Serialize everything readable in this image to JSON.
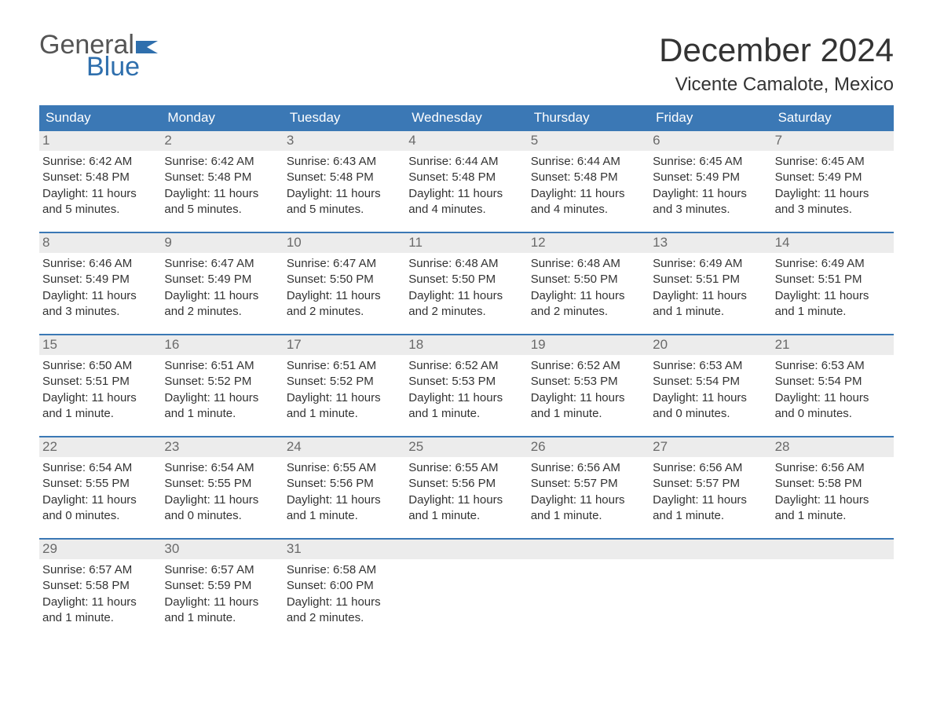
{
  "brand": {
    "general": "General",
    "blue": "Blue"
  },
  "title": "December 2024",
  "location": "Vicente Camalote, Mexico",
  "colors": {
    "header_bg": "#3b78b5",
    "header_text": "#ffffff",
    "daynum_bg": "#ececec",
    "daynum_text": "#6a6a6a",
    "body_text": "#333333",
    "brand_gray": "#555555",
    "brand_blue": "#2f6fad",
    "page_bg": "#ffffff"
  },
  "day_labels": [
    "Sunday",
    "Monday",
    "Tuesday",
    "Wednesday",
    "Thursday",
    "Friday",
    "Saturday"
  ],
  "weeks": [
    [
      {
        "n": "1",
        "sr": "Sunrise: 6:42 AM",
        "ss": "Sunset: 5:48 PM",
        "d1": "Daylight: 11 hours",
        "d2": "and 5 minutes."
      },
      {
        "n": "2",
        "sr": "Sunrise: 6:42 AM",
        "ss": "Sunset: 5:48 PM",
        "d1": "Daylight: 11 hours",
        "d2": "and 5 minutes."
      },
      {
        "n": "3",
        "sr": "Sunrise: 6:43 AM",
        "ss": "Sunset: 5:48 PM",
        "d1": "Daylight: 11 hours",
        "d2": "and 5 minutes."
      },
      {
        "n": "4",
        "sr": "Sunrise: 6:44 AM",
        "ss": "Sunset: 5:48 PM",
        "d1": "Daylight: 11 hours",
        "d2": "and 4 minutes."
      },
      {
        "n": "5",
        "sr": "Sunrise: 6:44 AM",
        "ss": "Sunset: 5:48 PM",
        "d1": "Daylight: 11 hours",
        "d2": "and 4 minutes."
      },
      {
        "n": "6",
        "sr": "Sunrise: 6:45 AM",
        "ss": "Sunset: 5:49 PM",
        "d1": "Daylight: 11 hours",
        "d2": "and 3 minutes."
      },
      {
        "n": "7",
        "sr": "Sunrise: 6:45 AM",
        "ss": "Sunset: 5:49 PM",
        "d1": "Daylight: 11 hours",
        "d2": "and 3 minutes."
      }
    ],
    [
      {
        "n": "8",
        "sr": "Sunrise: 6:46 AM",
        "ss": "Sunset: 5:49 PM",
        "d1": "Daylight: 11 hours",
        "d2": "and 3 minutes."
      },
      {
        "n": "9",
        "sr": "Sunrise: 6:47 AM",
        "ss": "Sunset: 5:49 PM",
        "d1": "Daylight: 11 hours",
        "d2": "and 2 minutes."
      },
      {
        "n": "10",
        "sr": "Sunrise: 6:47 AM",
        "ss": "Sunset: 5:50 PM",
        "d1": "Daylight: 11 hours",
        "d2": "and 2 minutes."
      },
      {
        "n": "11",
        "sr": "Sunrise: 6:48 AM",
        "ss": "Sunset: 5:50 PM",
        "d1": "Daylight: 11 hours",
        "d2": "and 2 minutes."
      },
      {
        "n": "12",
        "sr": "Sunrise: 6:48 AM",
        "ss": "Sunset: 5:50 PM",
        "d1": "Daylight: 11 hours",
        "d2": "and 2 minutes."
      },
      {
        "n": "13",
        "sr": "Sunrise: 6:49 AM",
        "ss": "Sunset: 5:51 PM",
        "d1": "Daylight: 11 hours",
        "d2": "and 1 minute."
      },
      {
        "n": "14",
        "sr": "Sunrise: 6:49 AM",
        "ss": "Sunset: 5:51 PM",
        "d1": "Daylight: 11 hours",
        "d2": "and 1 minute."
      }
    ],
    [
      {
        "n": "15",
        "sr": "Sunrise: 6:50 AM",
        "ss": "Sunset: 5:51 PM",
        "d1": "Daylight: 11 hours",
        "d2": "and 1 minute."
      },
      {
        "n": "16",
        "sr": "Sunrise: 6:51 AM",
        "ss": "Sunset: 5:52 PM",
        "d1": "Daylight: 11 hours",
        "d2": "and 1 minute."
      },
      {
        "n": "17",
        "sr": "Sunrise: 6:51 AM",
        "ss": "Sunset: 5:52 PM",
        "d1": "Daylight: 11 hours",
        "d2": "and 1 minute."
      },
      {
        "n": "18",
        "sr": "Sunrise: 6:52 AM",
        "ss": "Sunset: 5:53 PM",
        "d1": "Daylight: 11 hours",
        "d2": "and 1 minute."
      },
      {
        "n": "19",
        "sr": "Sunrise: 6:52 AM",
        "ss": "Sunset: 5:53 PM",
        "d1": "Daylight: 11 hours",
        "d2": "and 1 minute."
      },
      {
        "n": "20",
        "sr": "Sunrise: 6:53 AM",
        "ss": "Sunset: 5:54 PM",
        "d1": "Daylight: 11 hours",
        "d2": "and 0 minutes."
      },
      {
        "n": "21",
        "sr": "Sunrise: 6:53 AM",
        "ss": "Sunset: 5:54 PM",
        "d1": "Daylight: 11 hours",
        "d2": "and 0 minutes."
      }
    ],
    [
      {
        "n": "22",
        "sr": "Sunrise: 6:54 AM",
        "ss": "Sunset: 5:55 PM",
        "d1": "Daylight: 11 hours",
        "d2": "and 0 minutes."
      },
      {
        "n": "23",
        "sr": "Sunrise: 6:54 AM",
        "ss": "Sunset: 5:55 PM",
        "d1": "Daylight: 11 hours",
        "d2": "and 0 minutes."
      },
      {
        "n": "24",
        "sr": "Sunrise: 6:55 AM",
        "ss": "Sunset: 5:56 PM",
        "d1": "Daylight: 11 hours",
        "d2": "and 1 minute."
      },
      {
        "n": "25",
        "sr": "Sunrise: 6:55 AM",
        "ss": "Sunset: 5:56 PM",
        "d1": "Daylight: 11 hours",
        "d2": "and 1 minute."
      },
      {
        "n": "26",
        "sr": "Sunrise: 6:56 AM",
        "ss": "Sunset: 5:57 PM",
        "d1": "Daylight: 11 hours",
        "d2": "and 1 minute."
      },
      {
        "n": "27",
        "sr": "Sunrise: 6:56 AM",
        "ss": "Sunset: 5:57 PM",
        "d1": "Daylight: 11 hours",
        "d2": "and 1 minute."
      },
      {
        "n": "28",
        "sr": "Sunrise: 6:56 AM",
        "ss": "Sunset: 5:58 PM",
        "d1": "Daylight: 11 hours",
        "d2": "and 1 minute."
      }
    ],
    [
      {
        "n": "29",
        "sr": "Sunrise: 6:57 AM",
        "ss": "Sunset: 5:58 PM",
        "d1": "Daylight: 11 hours",
        "d2": "and 1 minute."
      },
      {
        "n": "30",
        "sr": "Sunrise: 6:57 AM",
        "ss": "Sunset: 5:59 PM",
        "d1": "Daylight: 11 hours",
        "d2": "and 1 minute."
      },
      {
        "n": "31",
        "sr": "Sunrise: 6:58 AM",
        "ss": "Sunset: 6:00 PM",
        "d1": "Daylight: 11 hours",
        "d2": "and 2 minutes."
      },
      null,
      null,
      null,
      null
    ]
  ]
}
